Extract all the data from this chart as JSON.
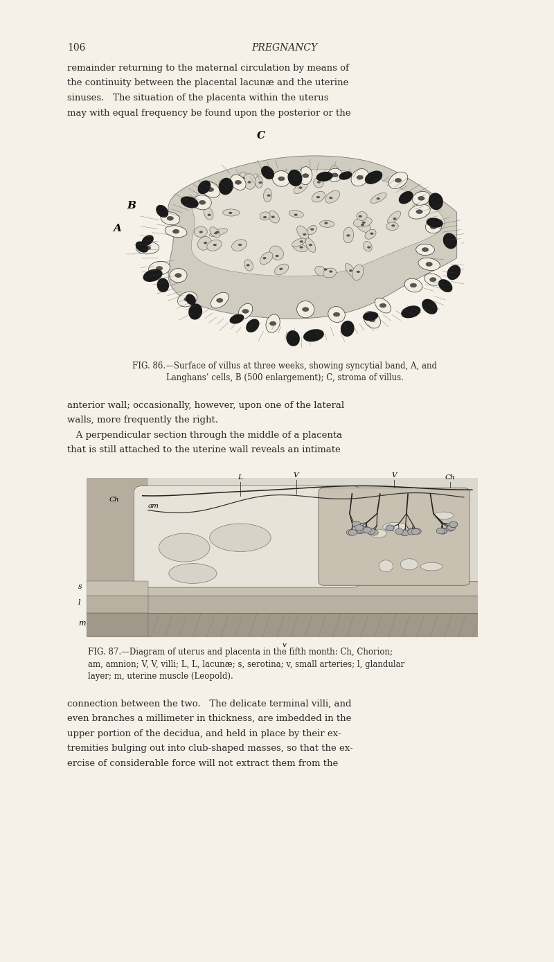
{
  "page_width": 8.0,
  "page_height": 13.89,
  "bg_color": "#f5f0e8",
  "page_number": "106",
  "page_title": "PREGNANCY",
  "body_text_color": "#2a2a2a",
  "header_fontsize": 10,
  "body_fontsize": 9.5,
  "caption_fontsize": 8.5,
  "para1_lines": [
    "remainder returning to the maternal circulation by means of",
    "the continuity between the placental lacunæ and the uterine",
    "sinuses.   The situation of the placenta within the uterus",
    "may with equal frequency be found upon the posterior or the"
  ],
  "fig86_caption_lines": [
    "FIG. 86.—Surface of villus at three weeks, showing syncytial band, A, and",
    "Langhans’ cells, B (500 enlargement); C, stroma of villus."
  ],
  "para2_lines": [
    "anterior wall; occasionally, however, upon one of the lateral",
    "walls, more frequently the right.",
    "   A perpendicular section through the middle of a placenta",
    "that is still attached to the uterine wall reveals an intimate"
  ],
  "fig87_caption_lines": [
    "FIG. 87.—Diagram of uterus and placenta in the fifth month: Ch, Chorion;",
    "am, amnion; V, V, villi; L, L, lacunæ; s, serotina; v, small arteries; l, glandular",
    "layer; m, uterine muscle (Leopold)."
  ],
  "para3_lines": [
    "connection between the two.   The delicate terminal villi, and",
    "even branches a millimeter in thickness, are imbedded in the",
    "upper portion of the decidua, and held in place by their ex-",
    "tremities bulging out into club-shaped masses, so that the ex-",
    "ercise of considerable force will not extract them from the"
  ]
}
